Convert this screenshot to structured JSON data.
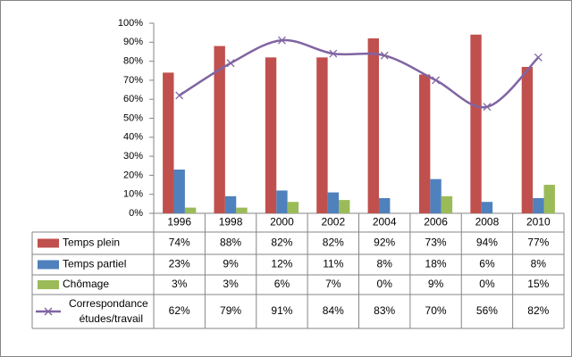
{
  "chart_data": {
    "type": "bar",
    "categories": [
      "1996",
      "1998",
      "2000",
      "2002",
      "2004",
      "2006",
      "2008",
      "2010"
    ],
    "series": [
      {
        "name": "Temps plein",
        "color": "#c0504d",
        "values": [
          74,
          88,
          82,
          82,
          92,
          73,
          94,
          77
        ],
        "value_labels": [
          "74%",
          "88%",
          "82%",
          "82%",
          "92%",
          "73%",
          "94%",
          "77%"
        ]
      },
      {
        "name": "Temps partiel",
        "color": "#4f81bd",
        "values": [
          23,
          9,
          12,
          11,
          8,
          18,
          6,
          8
        ],
        "value_labels": [
          "23%",
          "9%",
          "12%",
          "11%",
          "8%",
          "18%",
          "6%",
          "8%"
        ]
      },
      {
        "name": "Chômage",
        "color": "#9bbb59",
        "values": [
          3,
          3,
          6,
          7,
          0,
          9,
          0,
          15
        ],
        "value_labels": [
          "3%",
          "3%",
          "6%",
          "7%",
          "0%",
          "9%",
          "0%",
          "15%"
        ]
      },
      {
        "name": "Correspondance études/travail",
        "type": "line",
        "smooth": true,
        "marker": "x",
        "color": "#8064a2",
        "values": [
          62,
          79,
          91,
          84,
          83,
          70,
          56,
          82
        ],
        "value_labels": [
          "62%",
          "79%",
          "91%",
          "84%",
          "83%",
          "70%",
          "56%",
          "82%"
        ]
      }
    ],
    "ylim": [
      0,
      100
    ],
    "yticks": [
      {
        "value": 0,
        "label": "0%"
      },
      {
        "value": 10,
        "label": "10%"
      },
      {
        "value": 20,
        "label": "20%"
      },
      {
        "value": 30,
        "label": "30%"
      },
      {
        "value": 40,
        "label": "40%"
      },
      {
        "value": 50,
        "label": "50%"
      },
      {
        "value": 60,
        "label": "60%"
      },
      {
        "value": 70,
        "label": "70%"
      },
      {
        "value": 80,
        "label": "80%"
      },
      {
        "value": 90,
        "label": "90%"
      },
      {
        "value": 100,
        "label": "100%"
      }
    ],
    "data_table": true
  }
}
